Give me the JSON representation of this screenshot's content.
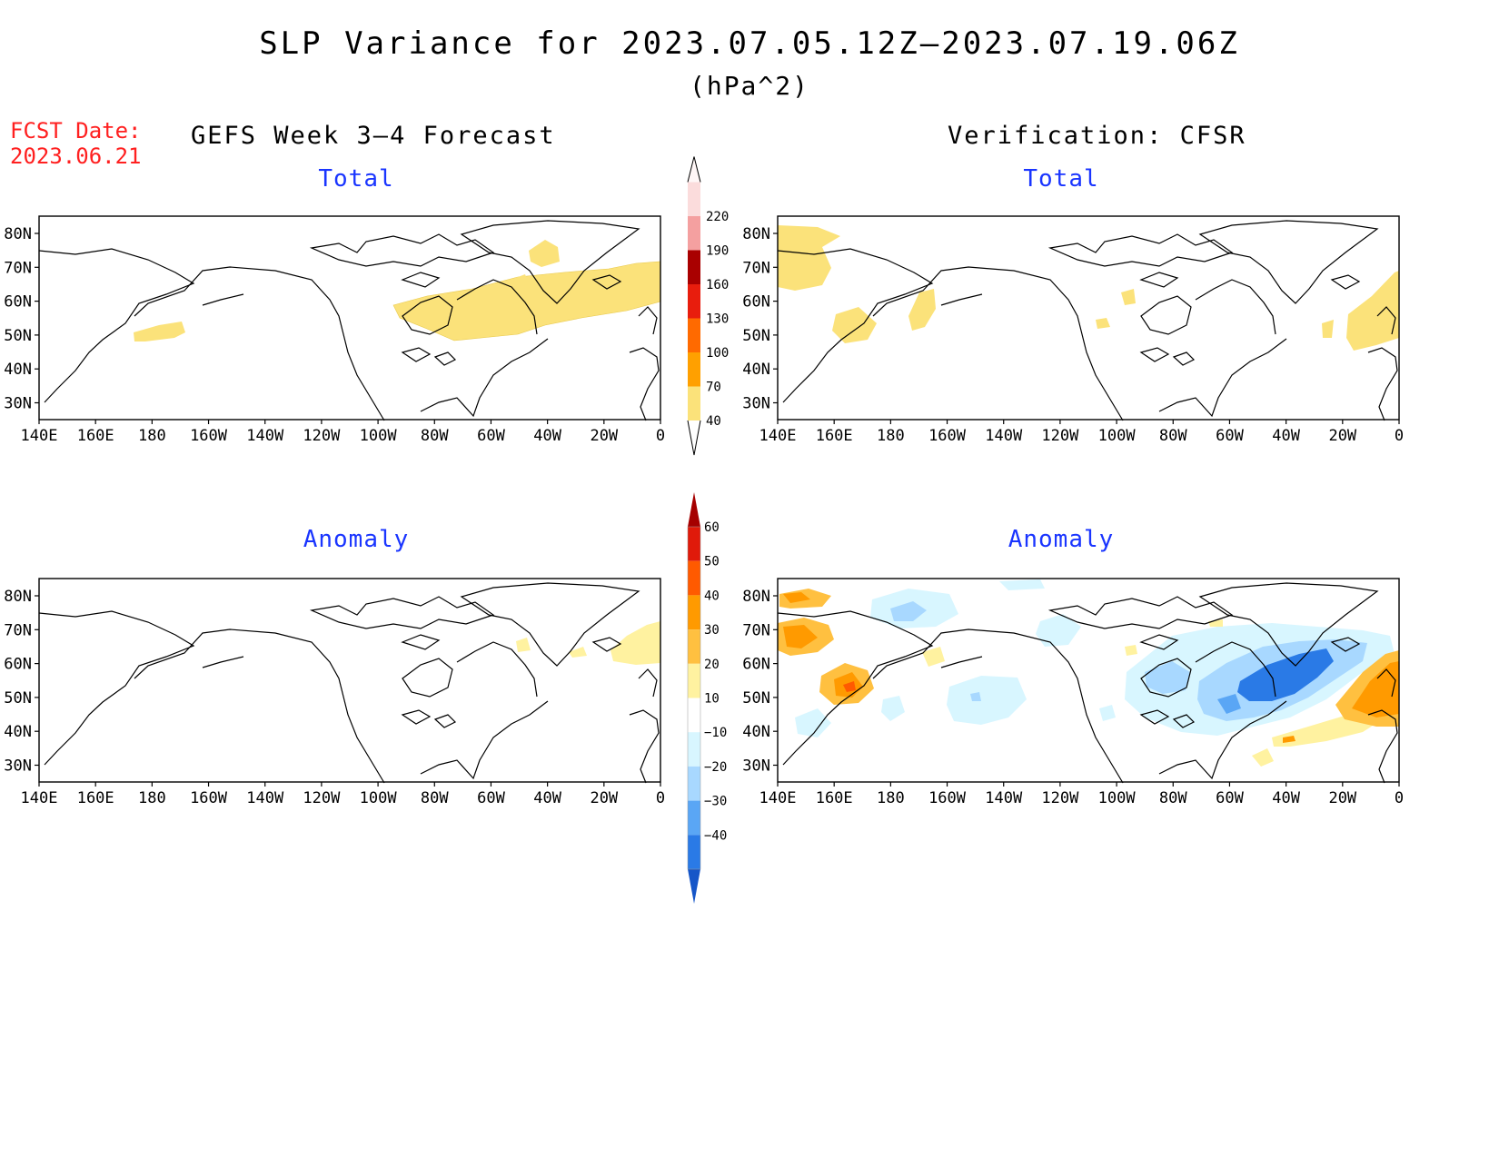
{
  "header": {
    "title": "SLP Variance for 2023.07.05.12Z–2023.07.19.06Z",
    "units": "(hPa^2)",
    "fcst_label": "FCST Date:",
    "fcst_date": "2023.06.21",
    "left_column_title": "GEFS Week 3–4 Forecast",
    "right_column_title": "Verification: CFSR"
  },
  "panels": [
    {
      "id": "gefs-total",
      "title": "Total"
    },
    {
      "id": "cfsr-total",
      "title": "Total"
    },
    {
      "id": "gefs-anomaly",
      "title": "Anomaly"
    },
    {
      "id": "cfsr-anomaly",
      "title": "Anomaly"
    }
  ],
  "axes": {
    "x_ticks": [
      "140E",
      "160E",
      "180",
      "160W",
      "140W",
      "120W",
      "100W",
      "80W",
      "60W",
      "40W",
      "20W",
      "0"
    ],
    "y_ticks": [
      "80N",
      "70N",
      "60N",
      "50N",
      "40N",
      "30N"
    ],
    "lon_range": [
      "140E",
      "0"
    ],
    "lat_range": [
      25,
      85
    ]
  },
  "colorbars": {
    "total": {
      "labels": [
        "40",
        "70",
        "100",
        "130",
        "160",
        "190",
        "220"
      ],
      "colors": [
        "#fbe27a",
        "#ffa000",
        "#ff6a00",
        "#e81d0d",
        "#a90000",
        "#f4a0a0",
        "#fbdcdc"
      ]
    },
    "anomaly": {
      "labels": [
        "60",
        "50",
        "40",
        "30",
        "20",
        "10",
        "−10",
        "−20",
        "−30",
        "−40"
      ],
      "colors": [
        "#a50000",
        "#e01a0a",
        "#ff5a00",
        "#ff9a00",
        "#ffc040",
        "#fff2a0",
        "#ffffff",
        "#d8f6ff",
        "#a8d8ff",
        "#5aa6f5",
        "#2a7ae6",
        "#1656c8"
      ]
    }
  },
  "colors": {
    "title_blue": "#1a35ff",
    "fcst_red": "#ff2020"
  }
}
